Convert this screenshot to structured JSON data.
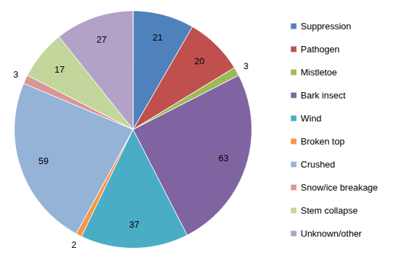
{
  "chart_data": {
    "type": "pie",
    "categories": [
      "Suppression",
      "Pathogen",
      "Mistletoe",
      "Bark insect",
      "Wind",
      "Broken top",
      "Crushed",
      "Snow/ice breakage",
      "Stem collapse",
      "Unknown/other"
    ],
    "values": [
      21,
      20,
      3,
      63,
      37,
      2,
      59,
      3,
      17,
      27
    ],
    "colors": [
      "#4f81bd",
      "#c0504d",
      "#9bbb59",
      "#8064a2",
      "#4bacc6",
      "#f79646",
      "#95b3d7",
      "#d99694",
      "#c3d69b",
      "#b3a2c7"
    ],
    "data_labels": true,
    "legend": "right"
  }
}
